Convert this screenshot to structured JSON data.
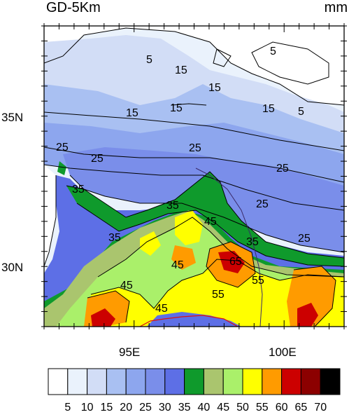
{
  "title": "GD-5Km",
  "units": "mm",
  "axes": {
    "lat_labels": [
      "35N",
      "30N"
    ],
    "lon_labels": [
      "95E",
      "100E"
    ]
  },
  "contour_labels": [
    "5",
    "15",
    "15",
    "5",
    "15",
    "15",
    "5",
    "15",
    "25",
    "25",
    "25",
    "25",
    "25",
    "35",
    "35",
    "25",
    "35",
    "45",
    "35",
    "45",
    "55",
    "45",
    "45",
    "55",
    "65"
  ],
  "colorbar": {
    "levels": [
      "5",
      "10",
      "15",
      "20",
      "25",
      "30",
      "35",
      "40",
      "45",
      "50",
      "55",
      "60",
      "65",
      "70"
    ],
    "colors": [
      "#ffffff",
      "#eaf2fc",
      "#d2ddf6",
      "#a9c0f2",
      "#8da6ee",
      "#7a8eea",
      "#5d6fe6",
      "#0f9a2c",
      "#aac56e",
      "#aaf06a",
      "#ffff00",
      "#ff9b00",
      "#cc0000",
      "#8c0000",
      "#000000"
    ]
  }
}
